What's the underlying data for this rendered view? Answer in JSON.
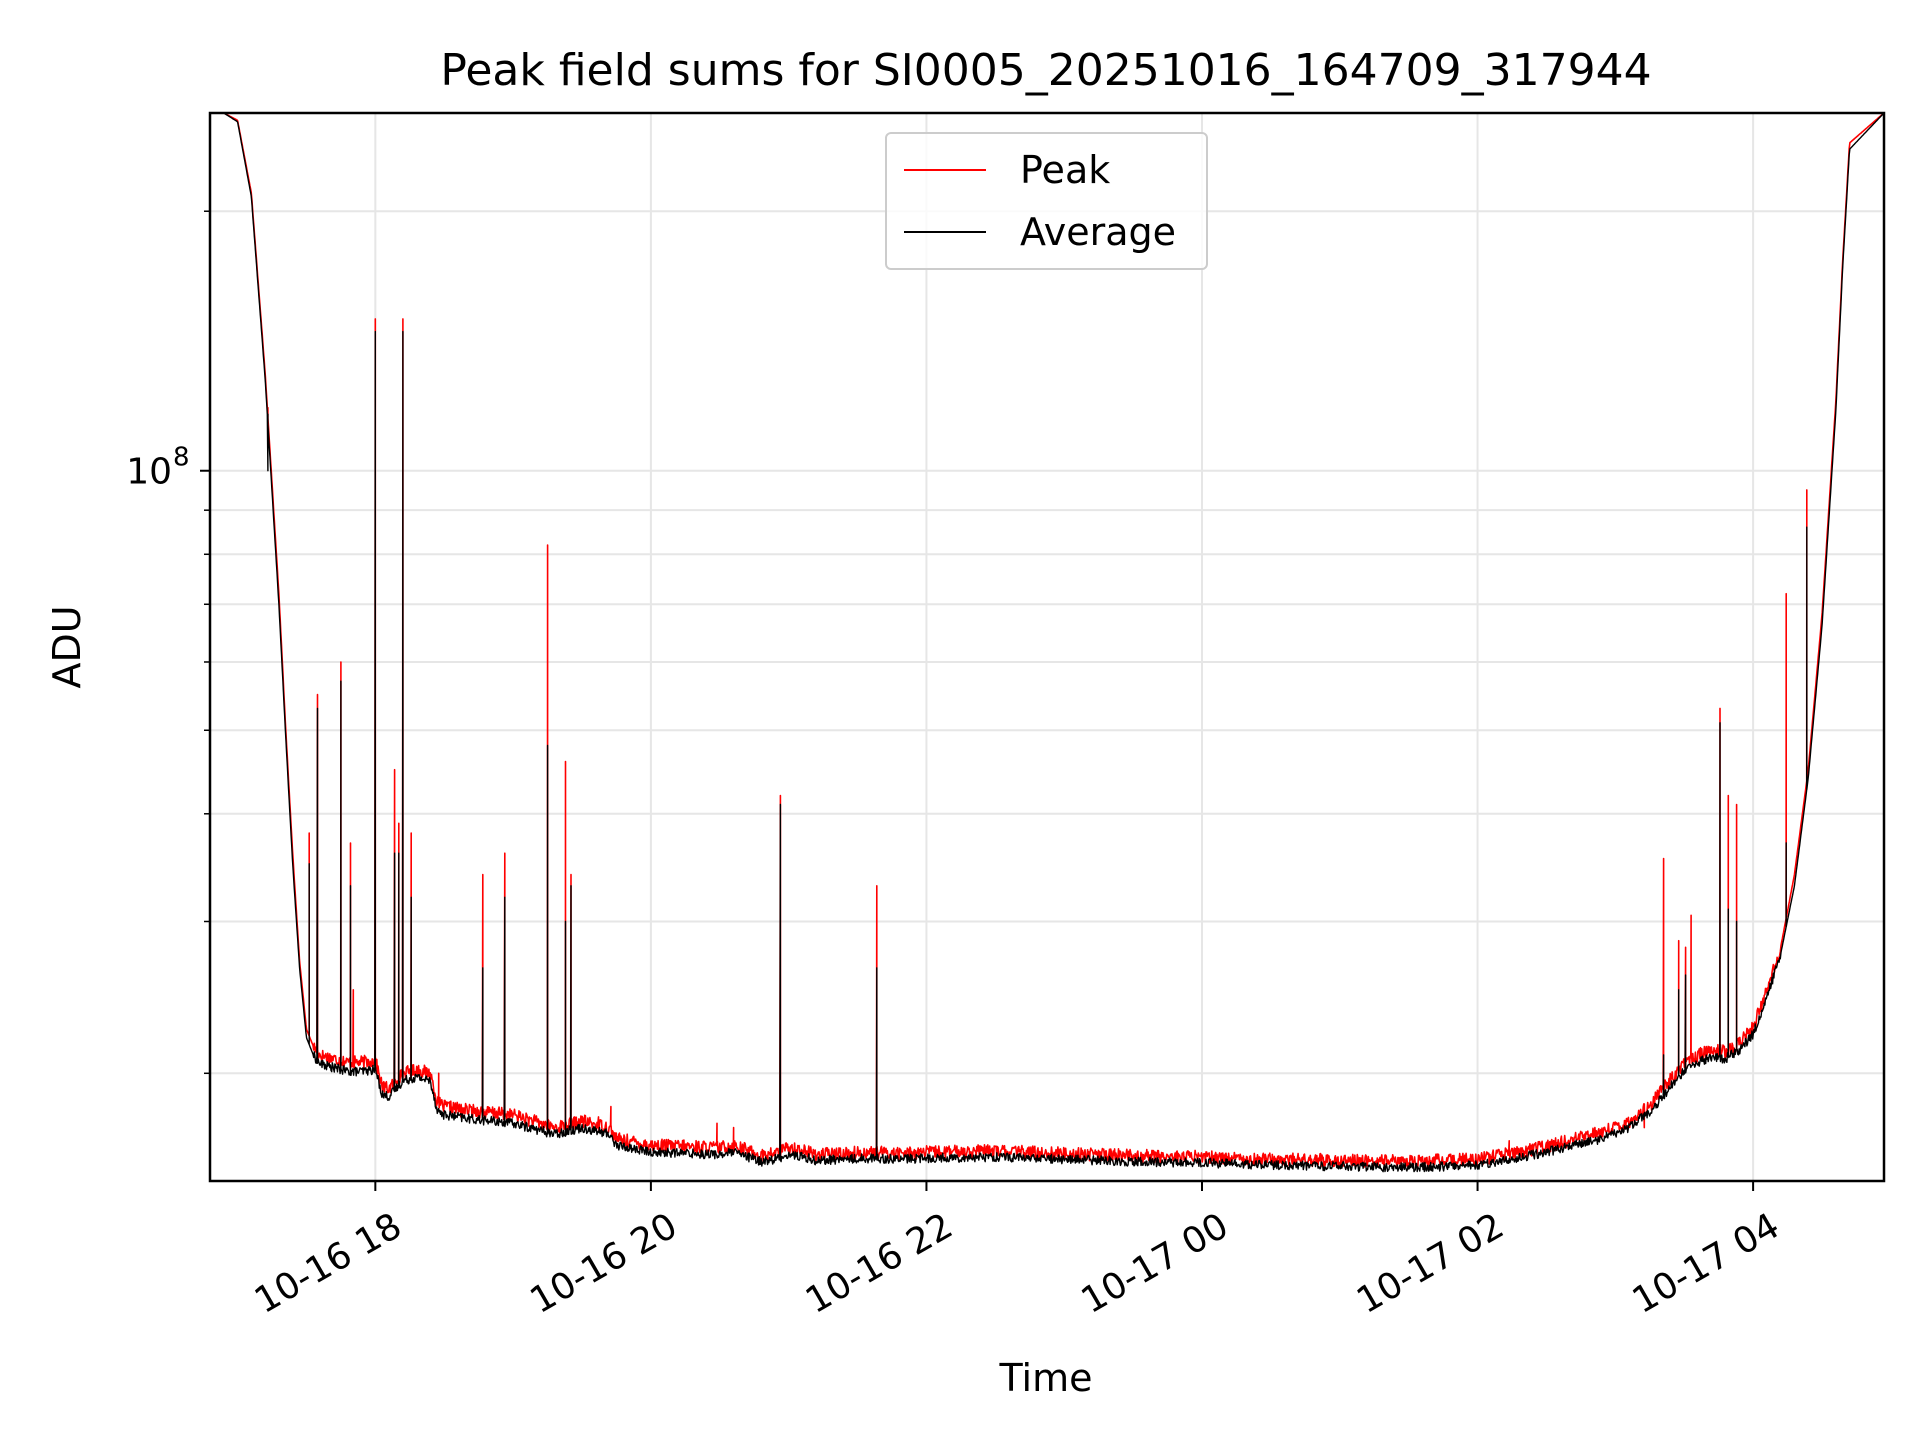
{
  "chart_data": {
    "type": "line",
    "title": "Peak field sums for SI0005_20251016_164709_317944",
    "xlabel": "Time",
    "ylabel": "ADU",
    "yscale": "log",
    "x_unit": "hours since 10-16 00:00",
    "xlim": [
      16.8,
      28.95
    ],
    "ylim": [
      15000000,
      260000000
    ],
    "grid": true,
    "legend_position": "upper center",
    "x_ticks": [
      {
        "value": 18,
        "label": "10-16 18"
      },
      {
        "value": 20,
        "label": "10-16 20"
      },
      {
        "value": 22,
        "label": "10-16 22"
      },
      {
        "value": 24,
        "label": "10-17 00"
      },
      {
        "value": 26,
        "label": "10-17 02"
      },
      {
        "value": 28,
        "label": "10-17 04"
      }
    ],
    "y_major_ticks": [
      {
        "value": 100000000,
        "label_base": "10",
        "label_exp": "8"
      }
    ],
    "y_minor_ticks": [
      20000000,
      30000000,
      40000000,
      50000000,
      60000000,
      70000000,
      80000000,
      90000000,
      200000000
    ],
    "series": [
      {
        "name": "Peak",
        "color": "#ff0000",
        "x": [
          16.8,
          16.9,
          17.0,
          17.1,
          17.2,
          17.3,
          17.35,
          17.4,
          17.45,
          17.5,
          17.55,
          17.6,
          17.7,
          17.8,
          17.9,
          18.0,
          18.05,
          18.1,
          18.2,
          18.3,
          18.4,
          18.45,
          18.5,
          18.7,
          19.0,
          19.3,
          19.5,
          19.7,
          19.75,
          20.0,
          20.3,
          20.5,
          20.6,
          20.7,
          20.8,
          20.9,
          21.0,
          21.1,
          21.2,
          21.4,
          21.6,
          21.8,
          22.0,
          22.5,
          23.0,
          23.5,
          24.0,
          24.5,
          25.0,
          25.5,
          26.0,
          26.3,
          26.6,
          26.9,
          27.1,
          27.2,
          27.25,
          27.3,
          27.4,
          27.5,
          27.6,
          27.7,
          27.8,
          27.9,
          28.0,
          28.1,
          28.2,
          28.3,
          28.4,
          28.5,
          28.6,
          28.65,
          28.7,
          28.95
        ],
        "values": [
          260000000,
          260000000,
          255000000,
          210000000,
          130000000,
          72000000,
          50000000,
          36000000,
          27000000,
          22500000,
          21500000,
          21000000,
          20800000,
          20600000,
          20600000,
          20700000,
          19300000,
          19200000,
          20000000,
          20200000,
          20000000,
          18500000,
          18300000,
          18100000,
          17900000,
          17300000,
          17600000,
          17300000,
          16800000,
          16500000,
          16450000,
          16400000,
          16500000,
          16300000,
          16050000,
          16150000,
          16400000,
          16300000,
          16100000,
          16150000,
          16200000,
          16150000,
          16200000,
          16250000,
          16150000,
          16050000,
          16000000,
          15900000,
          15850000,
          15800000,
          15900000,
          16200000,
          16600000,
          17100000,
          17600000,
          18100000,
          18300000,
          18800000,
          19700000,
          20500000,
          21000000,
          21300000,
          21200000,
          21700000,
          22600000,
          25000000,
          28000000,
          34000000,
          45000000,
          68000000,
          120000000,
          175000000,
          240000000,
          260000000
        ],
        "spikes": [
          {
            "x": 17.22,
            "value": 118000000
          },
          {
            "x": 17.52,
            "value": 38000000
          },
          {
            "x": 17.58,
            "value": 55000000
          },
          {
            "x": 17.75,
            "value": 60000000
          },
          {
            "x": 17.82,
            "value": 37000000
          },
          {
            "x": 17.84,
            "value": 25000000
          },
          {
            "x": 18.0,
            "value": 150000000
          },
          {
            "x": 18.14,
            "value": 45000000
          },
          {
            "x": 18.17,
            "value": 39000000
          },
          {
            "x": 18.2,
            "value": 150000000
          },
          {
            "x": 18.26,
            "value": 38000000
          },
          {
            "x": 18.46,
            "value": 20000000
          },
          {
            "x": 18.62,
            "value": 17800000
          },
          {
            "x": 18.78,
            "value": 34000000
          },
          {
            "x": 18.94,
            "value": 36000000
          },
          {
            "x": 19.25,
            "value": 82000000
          },
          {
            "x": 19.38,
            "value": 46000000
          },
          {
            "x": 19.42,
            "value": 34000000
          },
          {
            "x": 19.62,
            "value": 17800000
          },
          {
            "x": 19.71,
            "value": 18300000
          },
          {
            "x": 20.48,
            "value": 17500000
          },
          {
            "x": 20.6,
            "value": 17300000
          },
          {
            "x": 20.94,
            "value": 42000000
          },
          {
            "x": 21.64,
            "value": 33000000
          },
          {
            "x": 26.23,
            "value": 16700000
          },
          {
            "x": 27.21,
            "value": 17300000
          },
          {
            "x": 27.35,
            "value": 35500000
          },
          {
            "x": 27.46,
            "value": 28500000
          },
          {
            "x": 27.51,
            "value": 28000000
          },
          {
            "x": 27.55,
            "value": 30500000
          },
          {
            "x": 27.76,
            "value": 53000000
          },
          {
            "x": 27.82,
            "value": 42000000
          },
          {
            "x": 27.88,
            "value": 41000000
          },
          {
            "x": 28.24,
            "value": 72000000
          },
          {
            "x": 28.39,
            "value": 95000000
          }
        ]
      },
      {
        "name": "Average",
        "color": "#000000",
        "x": [
          16.8,
          16.9,
          17.0,
          17.1,
          17.2,
          17.3,
          17.35,
          17.4,
          17.45,
          17.5,
          17.55,
          17.6,
          17.7,
          17.8,
          17.9,
          18.0,
          18.05,
          18.1,
          18.2,
          18.3,
          18.4,
          18.45,
          18.5,
          18.7,
          19.0,
          19.3,
          19.5,
          19.7,
          19.75,
          20.0,
          20.3,
          20.5,
          20.6,
          20.7,
          20.8,
          20.9,
          21.0,
          21.1,
          21.2,
          21.4,
          21.6,
          21.8,
          22.0,
          22.5,
          23.0,
          23.5,
          24.0,
          24.5,
          25.0,
          25.5,
          26.0,
          26.3,
          26.6,
          26.9,
          27.1,
          27.2,
          27.25,
          27.3,
          27.4,
          27.5,
          27.6,
          27.7,
          27.8,
          27.9,
          28.0,
          28.1,
          28.2,
          28.3,
          28.4,
          28.5,
          28.6,
          28.65,
          28.7,
          28.95
        ],
        "values": [
          260000000,
          260000000,
          254000000,
          208000000,
          128000000,
          70000000,
          49000000,
          35000000,
          26500000,
          22000000,
          21000000,
          20500000,
          20300000,
          20100000,
          20100000,
          20200000,
          18900000,
          18800000,
          19600000,
          19800000,
          19600000,
          18100000,
          17900000,
          17700000,
          17500000,
          17000000,
          17300000,
          17000000,
          16500000,
          16200000,
          16150000,
          16100000,
          16200000,
          16000000,
          15800000,
          15900000,
          16100000,
          16000000,
          15850000,
          15900000,
          15950000,
          15900000,
          15950000,
          16000000,
          15900000,
          15800000,
          15750000,
          15650000,
          15600000,
          15550000,
          15650000,
          15950000,
          16350000,
          16800000,
          17300000,
          17800000,
          17950000,
          18400000,
          19300000,
          20100000,
          20600000,
          20900000,
          20800000,
          21300000,
          22200000,
          24500000,
          27500000,
          33000000,
          44000000,
          66000000,
          117000000,
          172000000,
          236000000,
          260000000
        ],
        "spikes": [
          {
            "x": 17.22,
            "value": 100000000
          },
          {
            "x": 17.52,
            "value": 35000000
          },
          {
            "x": 17.58,
            "value": 53000000
          },
          {
            "x": 17.75,
            "value": 57000000
          },
          {
            "x": 17.82,
            "value": 33000000
          },
          {
            "x": 18.0,
            "value": 145000000
          },
          {
            "x": 18.14,
            "value": 36000000
          },
          {
            "x": 18.17,
            "value": 36000000
          },
          {
            "x": 18.2,
            "value": 145000000
          },
          {
            "x": 18.26,
            "value": 32000000
          },
          {
            "x": 18.78,
            "value": 26500000
          },
          {
            "x": 18.94,
            "value": 32000000
          },
          {
            "x": 19.25,
            "value": 48000000
          },
          {
            "x": 19.38,
            "value": 30000000
          },
          {
            "x": 19.42,
            "value": 33000000
          },
          {
            "x": 20.94,
            "value": 41000000
          },
          {
            "x": 21.64,
            "value": 26500000
          },
          {
            "x": 27.35,
            "value": 21000000
          },
          {
            "x": 27.46,
            "value": 25000000
          },
          {
            "x": 27.51,
            "value": 26000000
          },
          {
            "x": 27.76,
            "value": 51000000
          },
          {
            "x": 27.82,
            "value": 31000000
          },
          {
            "x": 27.88,
            "value": 30000000
          },
          {
            "x": 28.24,
            "value": 37000000
          },
          {
            "x": 28.39,
            "value": 86000000
          }
        ]
      }
    ]
  }
}
